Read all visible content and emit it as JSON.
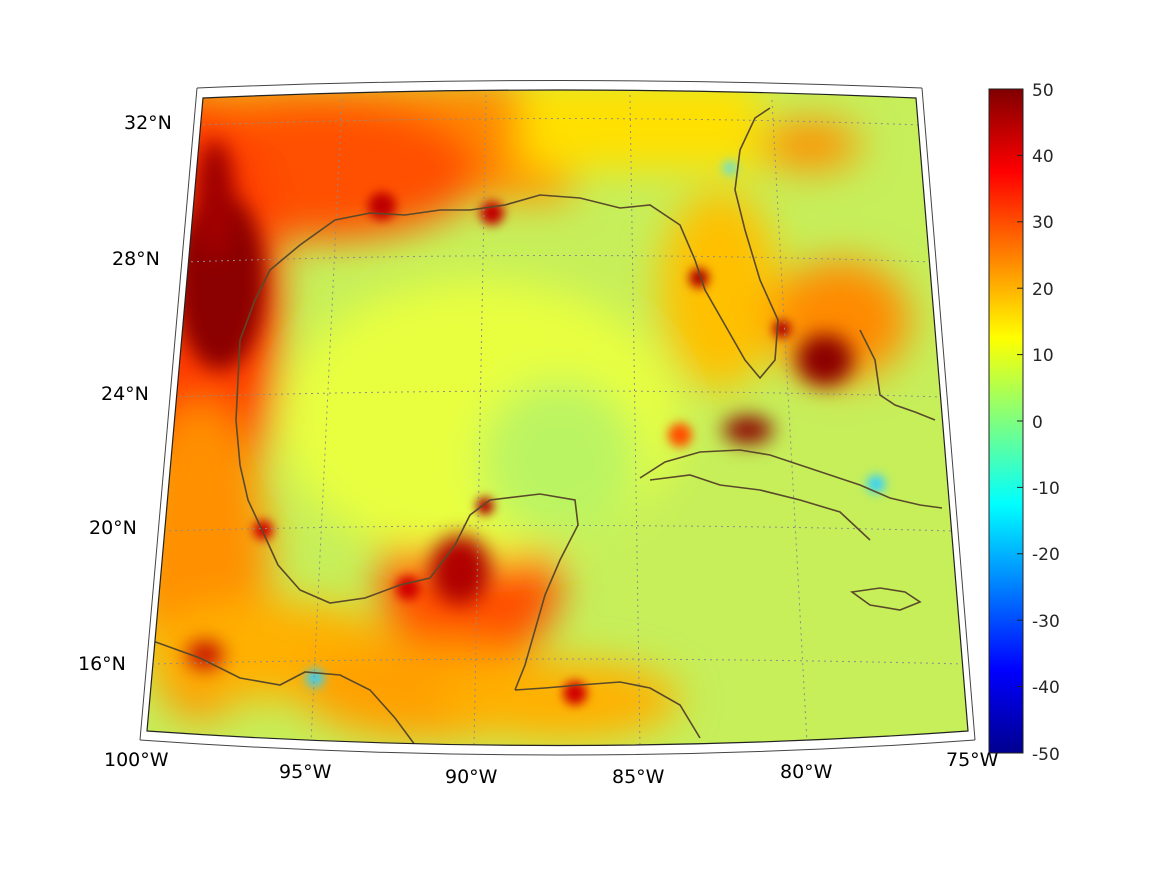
{
  "map": {
    "region": "Gulf of Mexico and Caribbean",
    "lat_labels": [
      "32°N",
      "28°N",
      "24°N",
      "20°N",
      "16°N"
    ],
    "lon_labels": [
      "100°W",
      "95°W",
      "90°W",
      "85°W",
      "80°W",
      "75°W"
    ]
  },
  "colorbar": {
    "colormap": "jet",
    "range": [
      -50,
      50
    ],
    "ticks": [
      "50",
      "40",
      "30",
      "20",
      "10",
      "0",
      "-10",
      "-20",
      "-30",
      "-40",
      "-50"
    ]
  },
  "colors": {
    "background_field": "#c8f25a",
    "land_warm": "#ff7a00",
    "hot_spot": "#8b0000",
    "coastline": "#5a4a2a",
    "grid": "#9a9a9a"
  }
}
